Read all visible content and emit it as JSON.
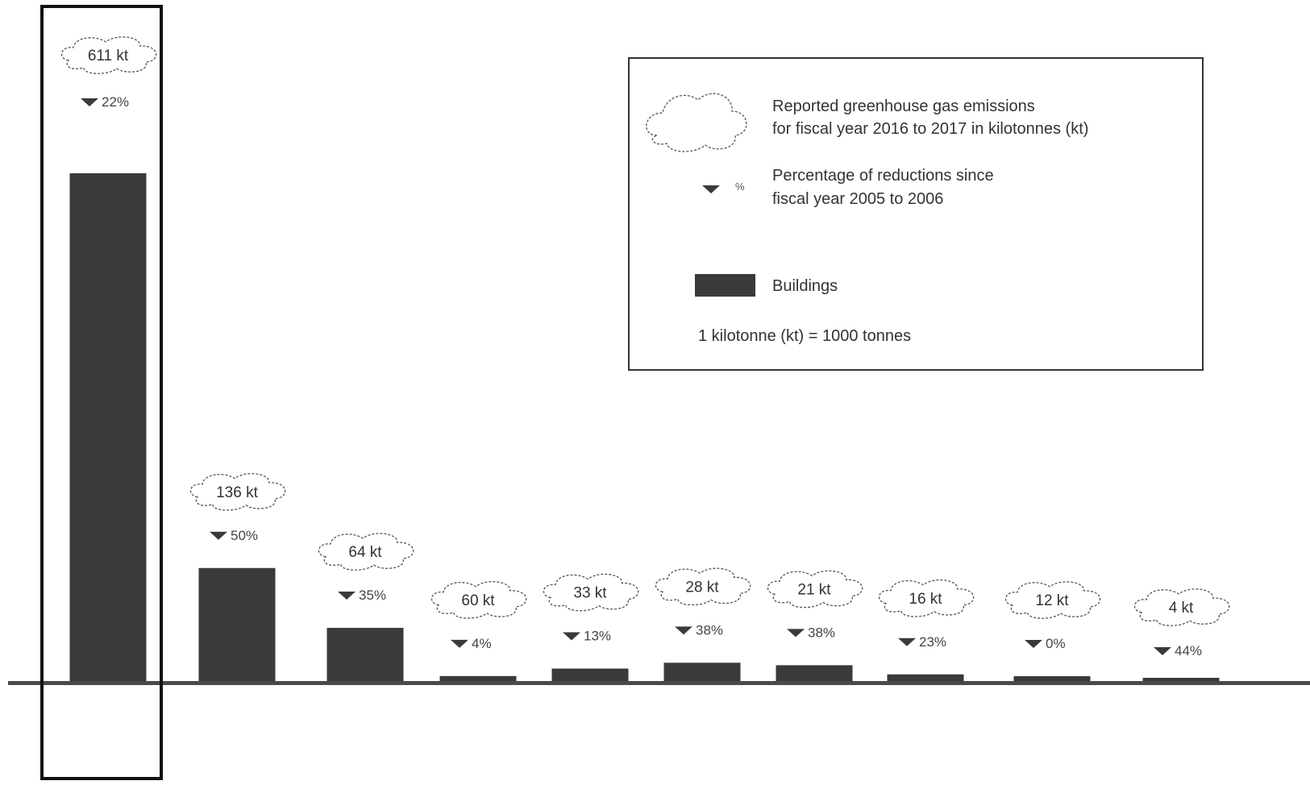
{
  "chart_data": {
    "type": "bar",
    "categories": [
      "",
      "",
      "",
      "",
      "",
      "",
      "",
      "",
      "",
      ""
    ],
    "values": [
      611,
      136,
      64,
      6,
      15,
      22,
      19,
      8,
      4,
      0
    ],
    "value_labels": [
      "611 kt",
      "136 kt",
      "64 kt",
      "60 kt",
      "33 kt",
      "28 kt",
      "21 kt",
      "16 kt",
      "12 kt",
      "4 kt"
    ],
    "reductions": [
      "22%",
      "50%",
      "35%",
      "4%",
      "13%",
      "38%",
      "38%",
      "23%",
      "0%",
      "44%"
    ],
    "series": [
      {
        "name": "Buildings",
        "values": [
          611,
          136,
          64,
          6,
          15,
          22,
          19,
          8,
          4,
          0
        ]
      }
    ],
    "highlighted_index": 0,
    "ylim": [
      0,
      700
    ],
    "grid": false,
    "legend_position": "top-right"
  },
  "legend": {
    "cloud_line1": "Reported greenhouse gas emissions",
    "cloud_line2": "for fiscal year 2016 to 2017 in kilotonnes (kt)",
    "pct_symbol": "%",
    "pct_line1": "Percentage of reductions since",
    "pct_line2": "fiscal year 2005 to 2006",
    "bar_label": "Buildings",
    "note": "1 kilotonne (kt) = 1000 tonnes"
  },
  "colors": {
    "bar": "#3a3a3a",
    "axis": "#4a4a4a",
    "cloud_stroke": "#555555"
  }
}
